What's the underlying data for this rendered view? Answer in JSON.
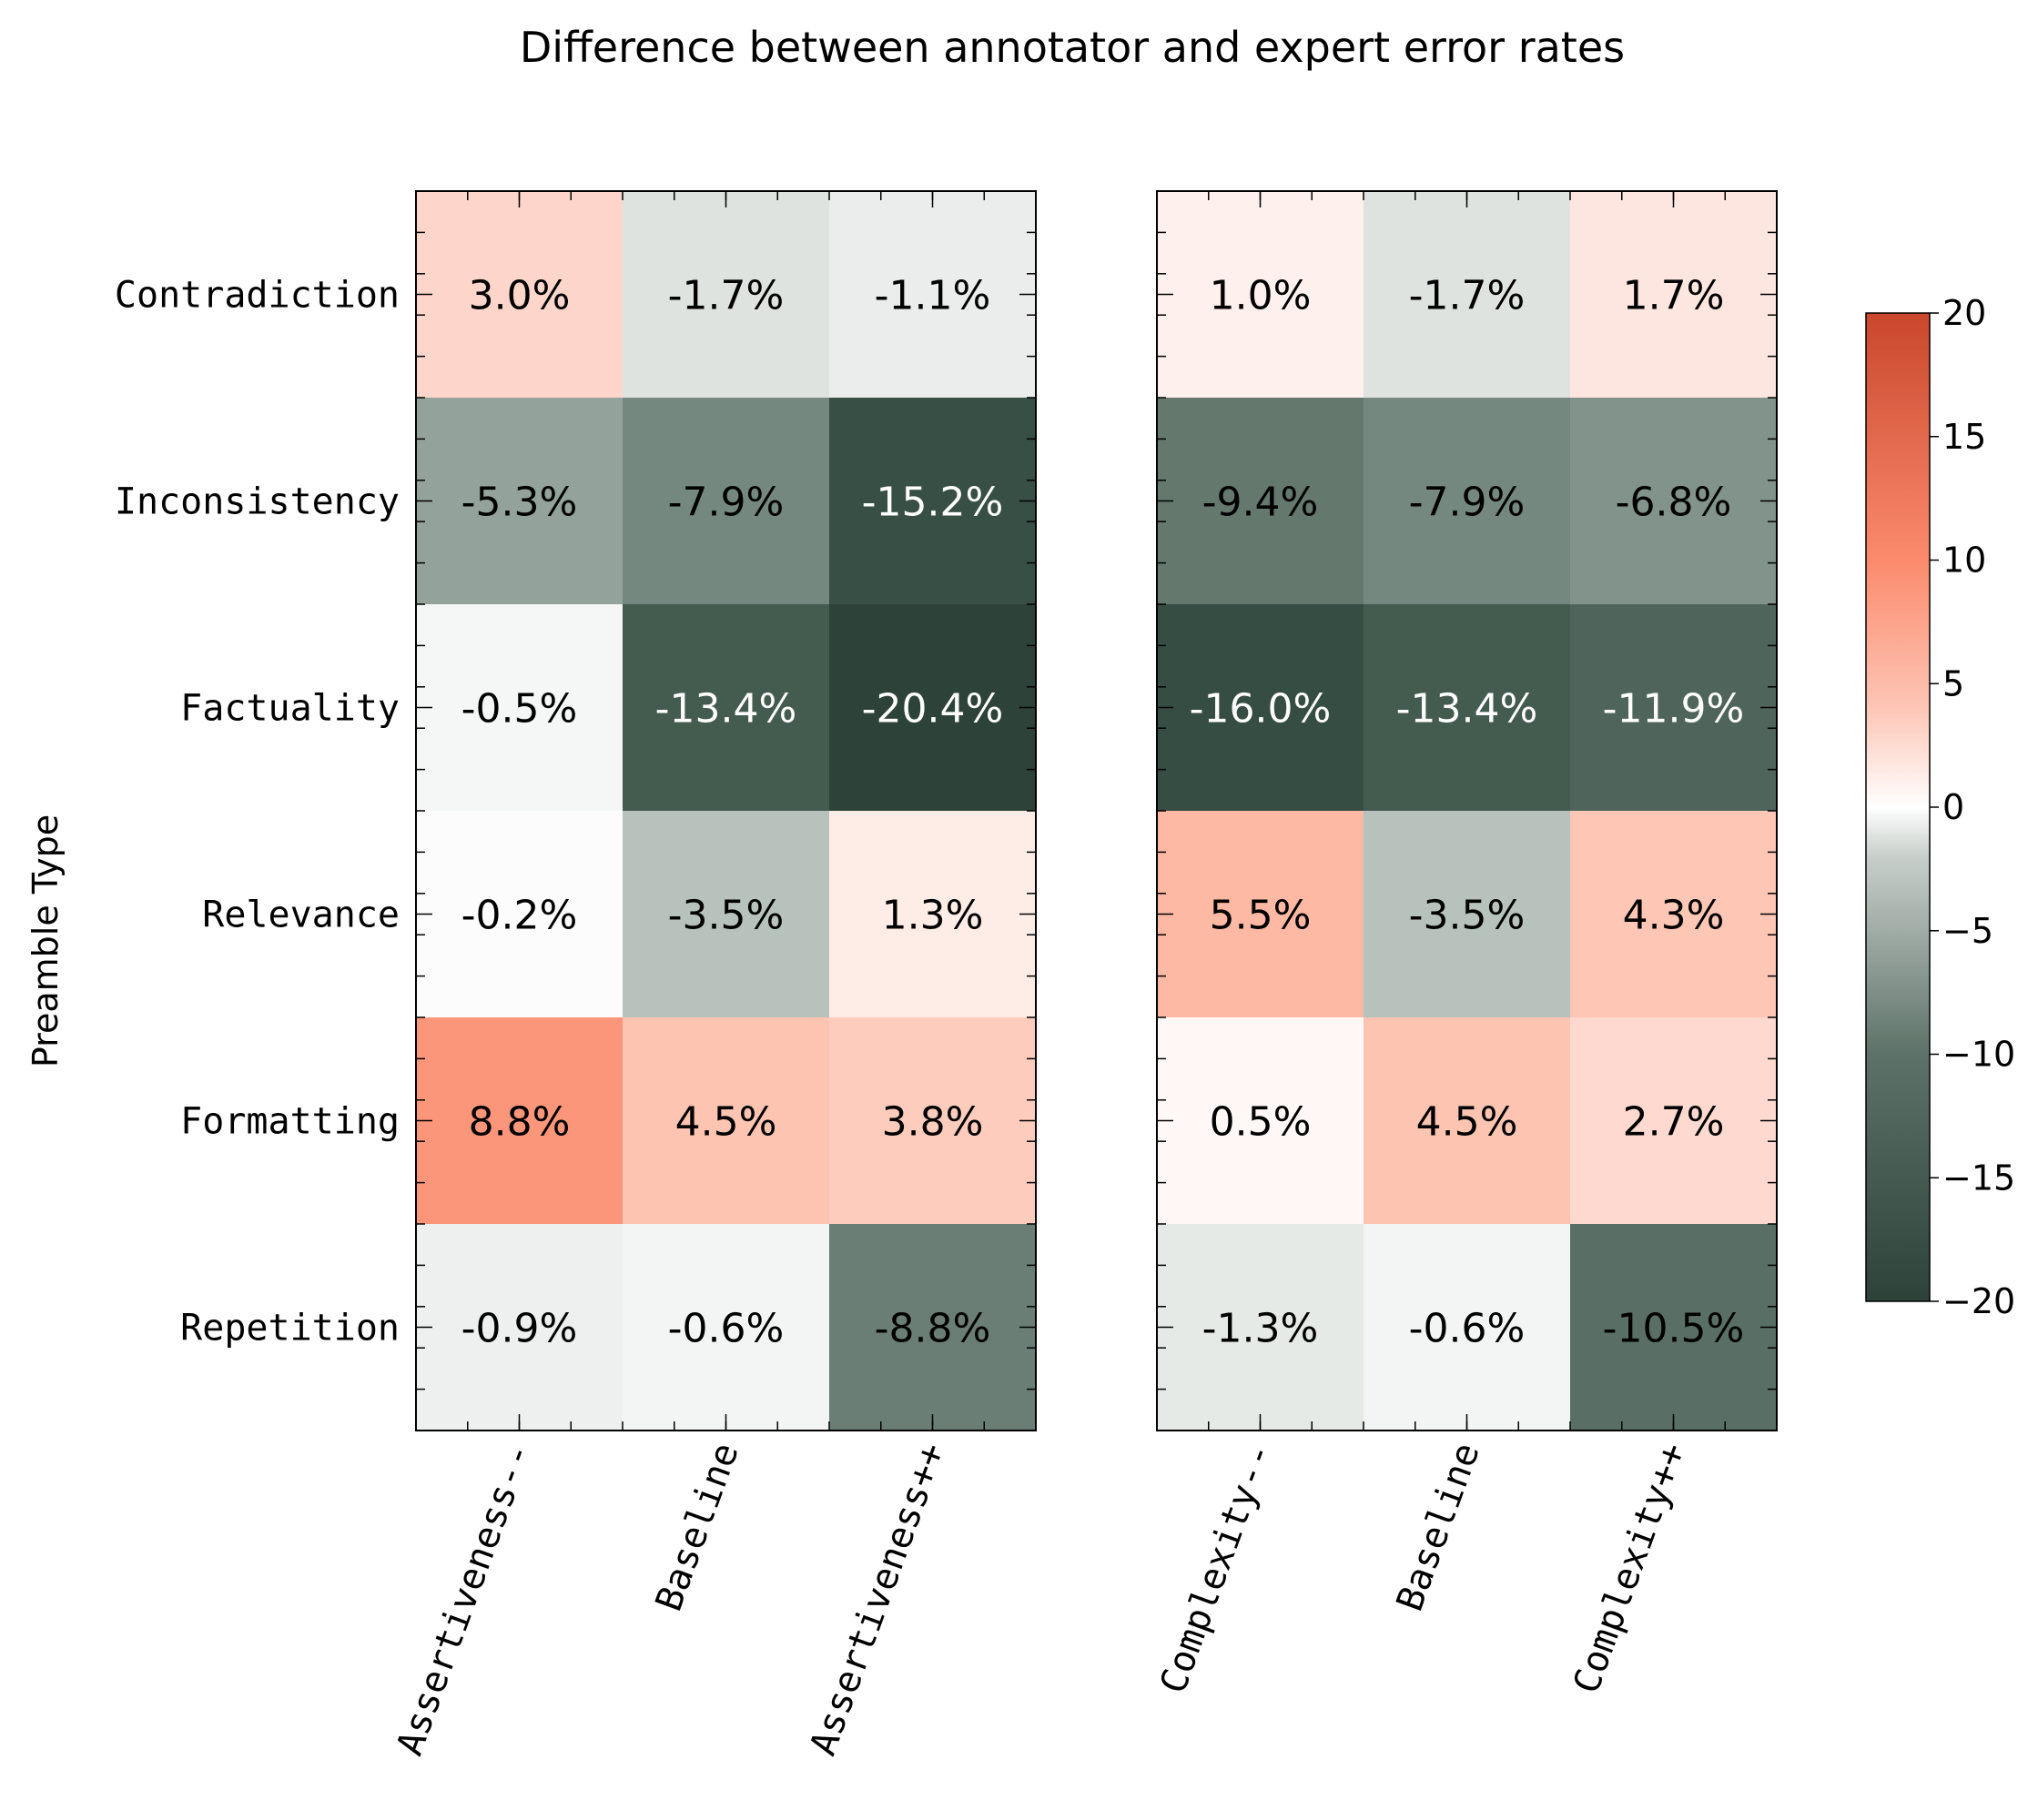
{
  "chart_data": {
    "type": "heatmap",
    "title": "Difference between annotator and expert error rates",
    "ylabel": "Preamble Type",
    "rows": [
      "Contradiction",
      "Inconsistency",
      "Factuality",
      "Relevance",
      "Formatting",
      "Repetition"
    ],
    "panels": [
      {
        "columns": [
          "Assertiveness--",
          "Baseline",
          "Assertiveness++"
        ],
        "values": [
          [
            3.0,
            -1.7,
            -1.1
          ],
          [
            -5.3,
            -7.9,
            -15.2
          ],
          [
            -0.5,
            -13.4,
            -20.4
          ],
          [
            -0.2,
            -3.5,
            1.3
          ],
          [
            8.8,
            4.5,
            3.8
          ],
          [
            -0.9,
            -0.6,
            -8.8
          ]
        ]
      },
      {
        "columns": [
          "Complexity--",
          "Baseline",
          "Complexity++"
        ],
        "values": [
          [
            1.0,
            -1.7,
            1.7
          ],
          [
            -9.4,
            -7.9,
            -6.8
          ],
          [
            -16.0,
            -13.4,
            -11.9
          ],
          [
            5.5,
            -3.5,
            4.3
          ],
          [
            0.5,
            4.5,
            2.7
          ],
          [
            -1.3,
            -0.6,
            -10.5
          ]
        ]
      }
    ],
    "value_format": "%",
    "colorbar": {
      "min": -20,
      "max": 20,
      "ticks": [
        20,
        15,
        10,
        5,
        0,
        -5,
        -10,
        -15,
        -20
      ],
      "tick_labels": [
        "20",
        "15",
        "10",
        "5",
        "0",
        "−5",
        "−10",
        "−15",
        "−20"
      ],
      "colors": {
        "neg": "#2d4339",
        "mid": "#ffffff",
        "pos": "#c9472d"
      }
    }
  }
}
